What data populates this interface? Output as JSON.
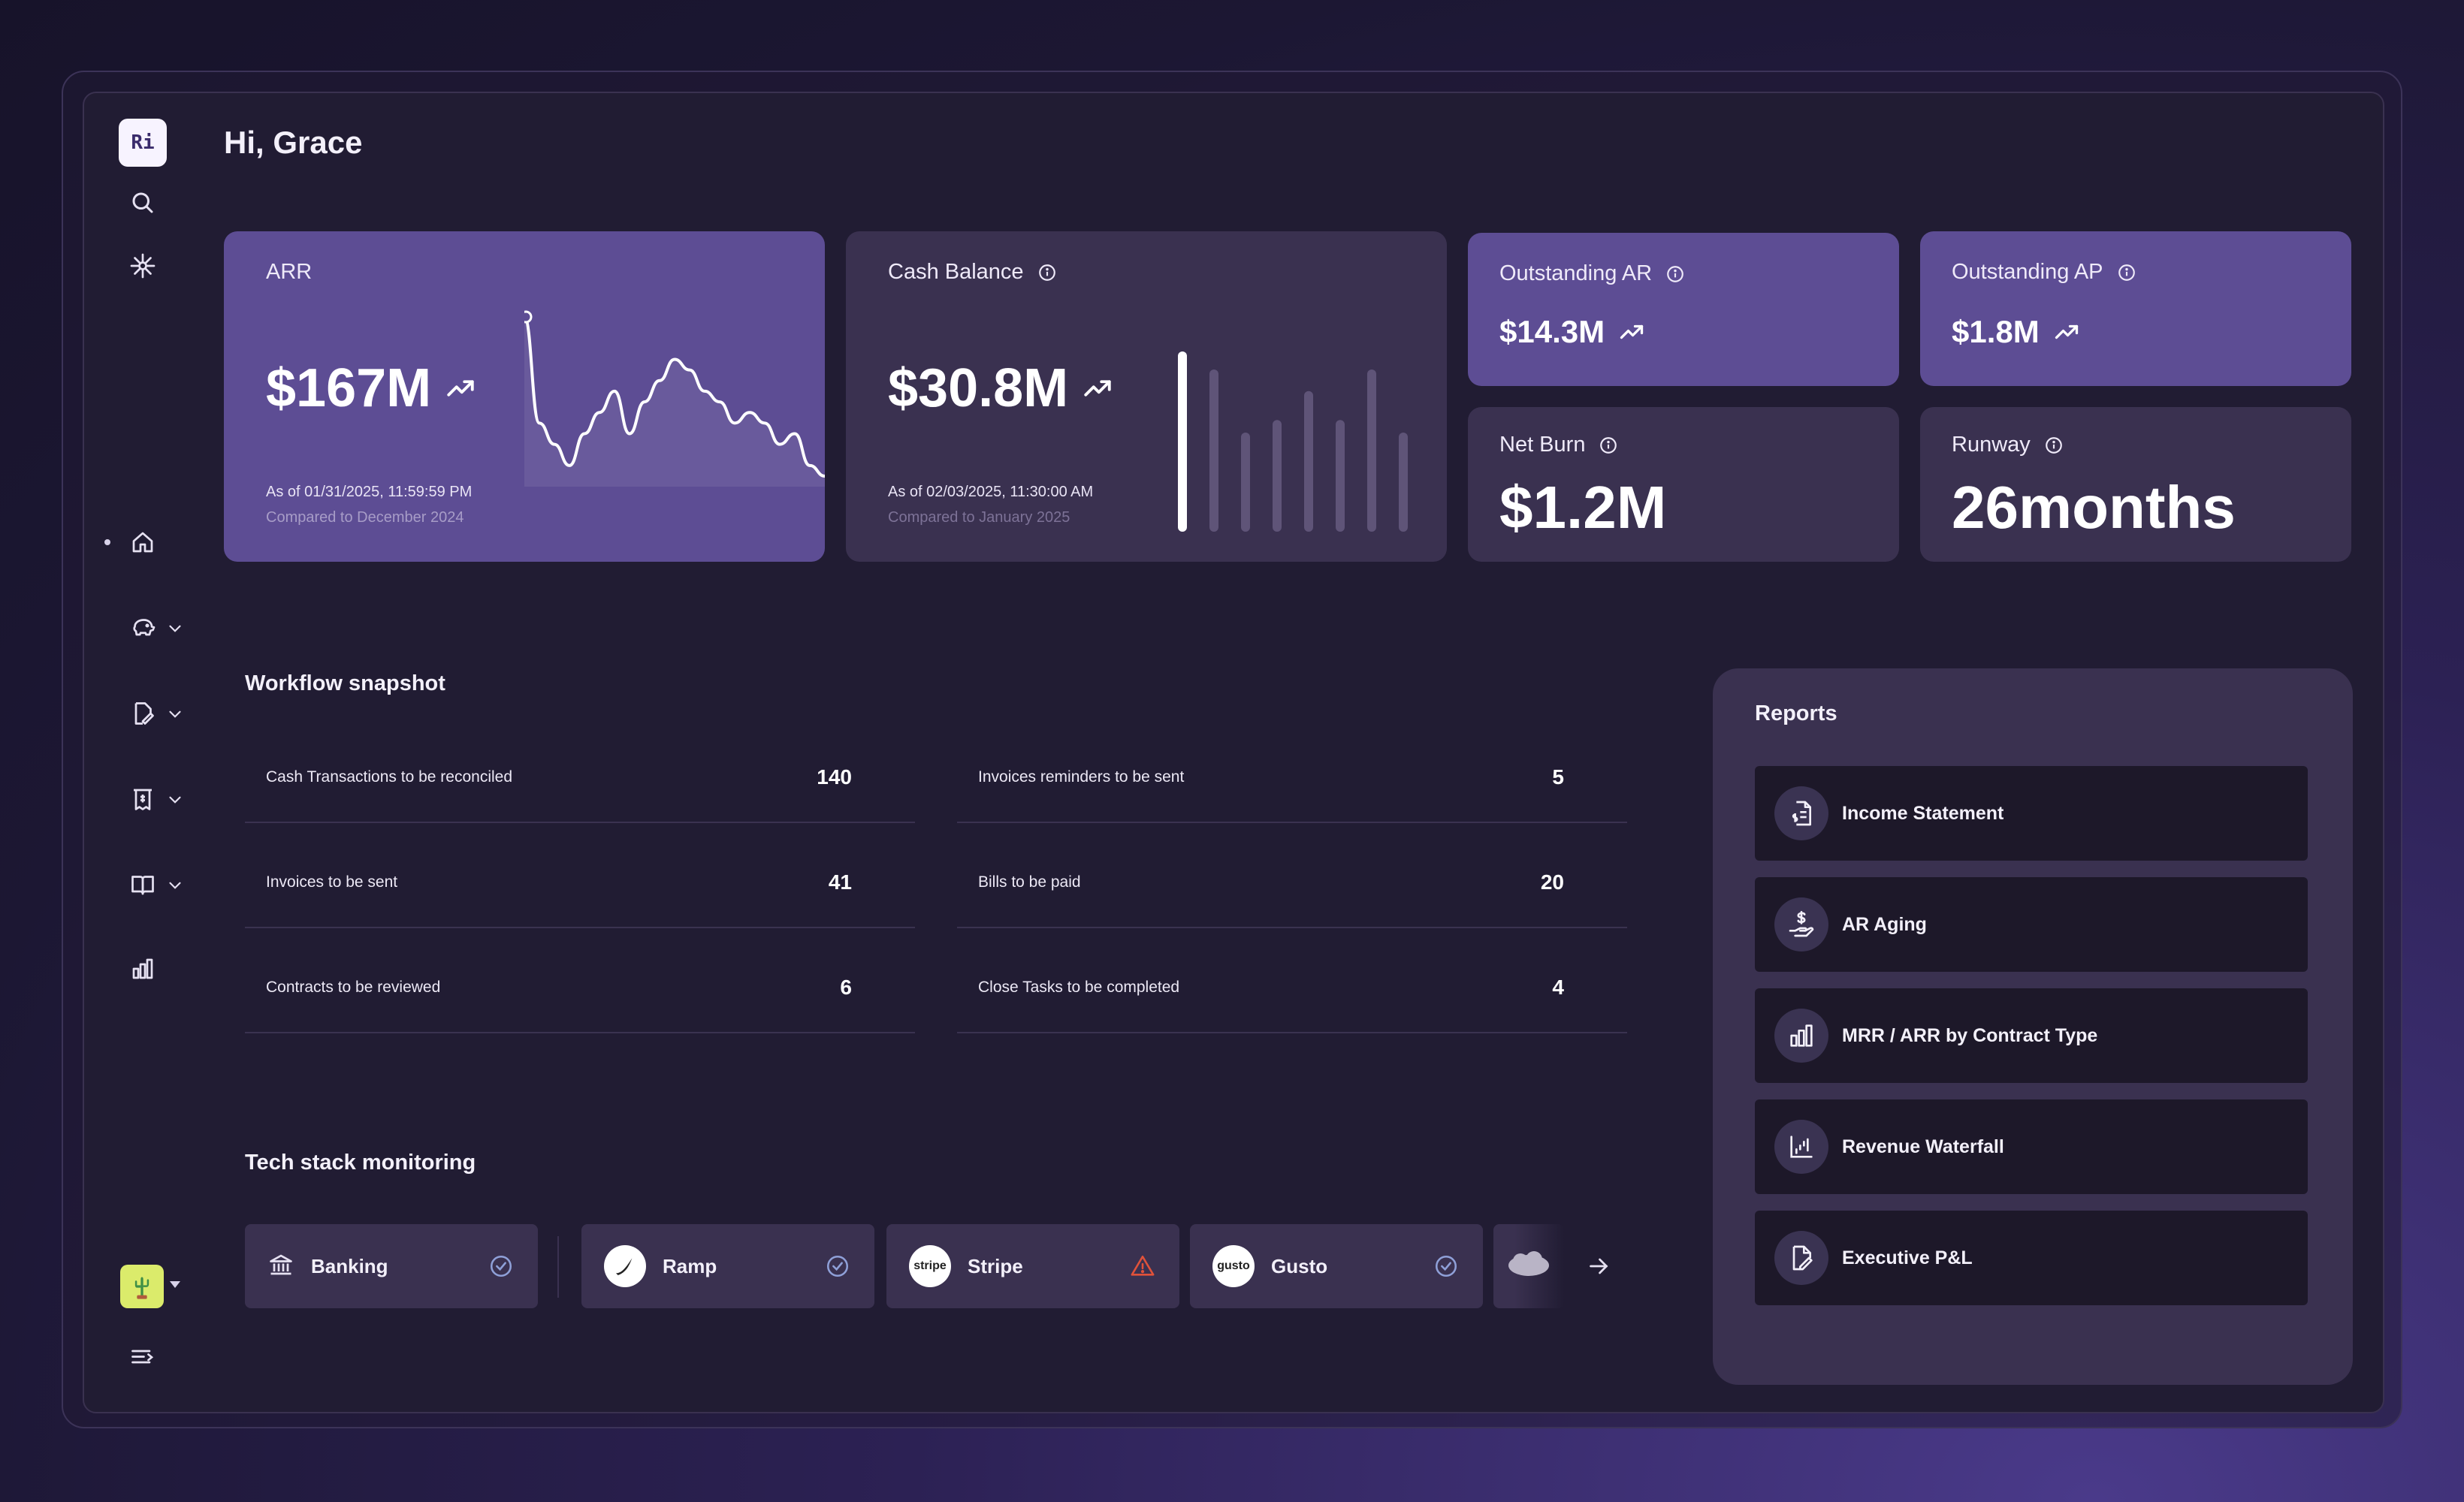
{
  "app": {
    "logo_text": "Ri",
    "greeting": "Hi, Grace"
  },
  "sidebar": {
    "items": [
      {
        "name": "search-icon"
      },
      {
        "name": "sparkle-icon"
      },
      {
        "name": "home-icon",
        "active": true
      },
      {
        "name": "piggy-bank-icon",
        "expandable": true
      },
      {
        "name": "sign-document-icon",
        "expandable": true
      },
      {
        "name": "receipt-icon",
        "expandable": true
      },
      {
        "name": "book-icon",
        "expandable": true
      },
      {
        "name": "bar-chart-icon"
      }
    ],
    "footer": [
      {
        "name": "avatar"
      },
      {
        "name": "collapse-menu-icon"
      }
    ]
  },
  "metrics": {
    "arr": {
      "title": "ARR",
      "value": "$167M",
      "as_of": "As of 01/31/2025, 11:59:59 PM",
      "compared": "Compared to December 2024",
      "sparkline": [
        18,
        8,
        6,
        4,
        7,
        9,
        11,
        7,
        10,
        12,
        14,
        13,
        11,
        10,
        8,
        9,
        8,
        6,
        7,
        4,
        3
      ]
    },
    "cash_balance": {
      "title": "Cash Balance",
      "value": "$30.8M",
      "as_of": "As of 02/03/2025, 11:30:00 AM",
      "compared": "Compared to January 2025",
      "bars": [
        1.0,
        0.9,
        0.55,
        0.62,
        0.78,
        0.62,
        0.9,
        0.55
      ]
    },
    "outstanding_ar": {
      "title": "Outstanding AR",
      "value": "$14.3M"
    },
    "outstanding_ap": {
      "title": "Outstanding AP",
      "value": "$1.8M"
    },
    "net_burn": {
      "title": "Net Burn",
      "value": "$1.2M"
    },
    "runway": {
      "title": "Runway",
      "value": "26months"
    }
  },
  "workflow": {
    "title": "Workflow snapshot",
    "left": [
      {
        "label": "Cash Transactions to be reconciled",
        "count": "140"
      },
      {
        "label": "Invoices to be sent",
        "count": "41"
      },
      {
        "label": "Contracts to be reviewed",
        "count": "6"
      }
    ],
    "right": [
      {
        "label": "Invoices reminders to be sent",
        "count": "5"
      },
      {
        "label": "Bills to be paid",
        "count": "20"
      },
      {
        "label": "Close Tasks to be completed",
        "count": "4"
      }
    ]
  },
  "tech_stack": {
    "title": "Tech stack monitoring",
    "items": [
      {
        "name": "Banking",
        "status": "ok"
      },
      {
        "name": "Ramp",
        "status": "ok"
      },
      {
        "name": "Stripe",
        "logo_text": "stripe",
        "status": "warning"
      },
      {
        "name": "Gusto",
        "logo_text": "gusto",
        "status": "ok"
      }
    ],
    "more_logo": "salesforce"
  },
  "reports": {
    "title": "Reports",
    "items": [
      {
        "label": "Income Statement",
        "icon": "dollar-document-icon"
      },
      {
        "label": "AR Aging",
        "icon": "hand-dollar-icon"
      },
      {
        "label": "MRR / ARR by Contract Type",
        "icon": "bar-chart-icon"
      },
      {
        "label": "Revenue Waterfall",
        "icon": "waterfall-chart-icon"
      },
      {
        "label": "Executive P&L",
        "icon": "document-sign-icon"
      }
    ]
  },
  "colors": {
    "card_purple": "#5d4d94",
    "card_dark": "#3a3150",
    "background": "#211c33",
    "warning": "#e0523a",
    "ok": "#8fa0d8"
  }
}
